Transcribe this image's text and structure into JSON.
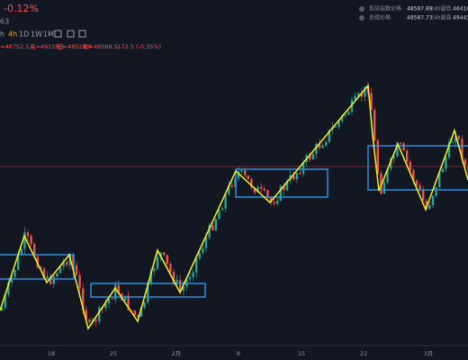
{
  "header": {
    "change": "-0.12%",
    "subtitle": "63"
  },
  "toolbar": {
    "intervals": [
      "h",
      "4h",
      "1D",
      "1W",
      "1M"
    ]
  },
  "ohlc": [
    "=48752.5",
    "高=49150.5",
    "低=48528.0",
    "收=48589.5",
    "-172.5 (-0.35%)"
  ],
  "stats": [
    {
      "label": "现货指数价格",
      "value": "48587.89",
      "label2": "24h最低",
      "value2": "46416."
    },
    {
      "label": "合理价格",
      "value": "48587.77",
      "label2": "24h最高",
      "value2": "49443."
    }
  ],
  "x_axis": [
    "18",
    "25",
    "2月",
    "8",
    "15",
    "22",
    "3月"
  ]
}
